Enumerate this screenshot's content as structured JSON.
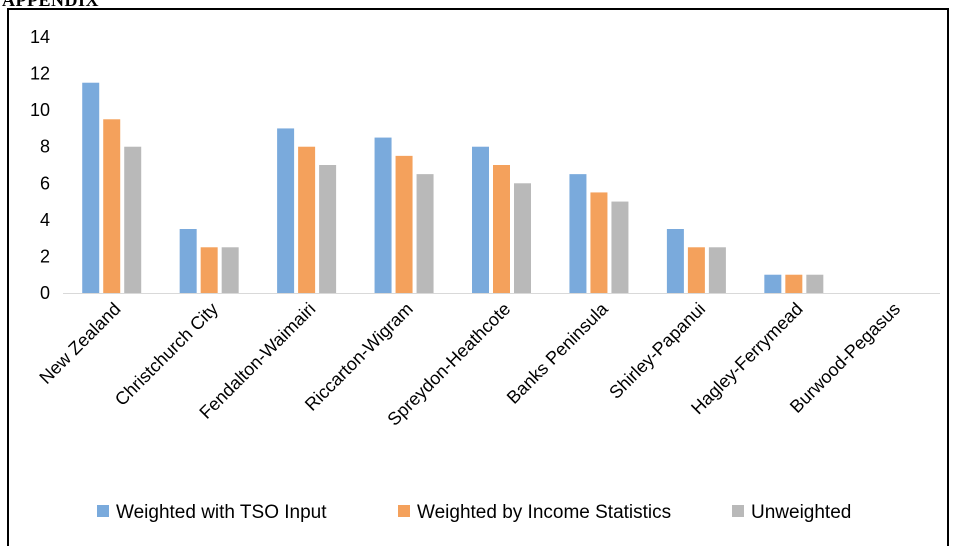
{
  "page": {
    "header_text": "APPENDIX"
  },
  "chart_data": {
    "type": "bar",
    "categories": [
      "New Zealand",
      "Christchurch City",
      "Fendalton-Waimairi",
      "Riccarton-Wigram",
      "Spreydon-Heathcote",
      "Banks Peninsula",
      "Shirley-Papanui",
      "Hagley-Ferrymead",
      "Burwood-Pegasus"
    ],
    "series": [
      {
        "name": "Weighted with TSO Input",
        "color": "#7aaadc",
        "values": [
          11.5,
          3.5,
          9.0,
          8.5,
          8.0,
          6.5,
          3.5,
          1.0,
          0
        ]
      },
      {
        "name": "Weighted by Income Statistics",
        "color": "#f4a15c",
        "values": [
          9.5,
          2.5,
          8.0,
          7.5,
          7.0,
          5.5,
          2.5,
          1.0,
          0
        ]
      },
      {
        "name": "Unweighted",
        "color": "#b9b9b9",
        "values": [
          8.0,
          2.5,
          7.0,
          6.5,
          6.0,
          5.0,
          2.5,
          1.0,
          0
        ]
      }
    ],
    "yticks": [
      "0",
      "2",
      "4",
      "6",
      "8",
      "10",
      "12",
      "14"
    ],
    "ylim": [
      0,
      14
    ],
    "title": "",
    "xlabel": "",
    "ylabel": "",
    "grid": false,
    "legend_position": "bottom"
  }
}
